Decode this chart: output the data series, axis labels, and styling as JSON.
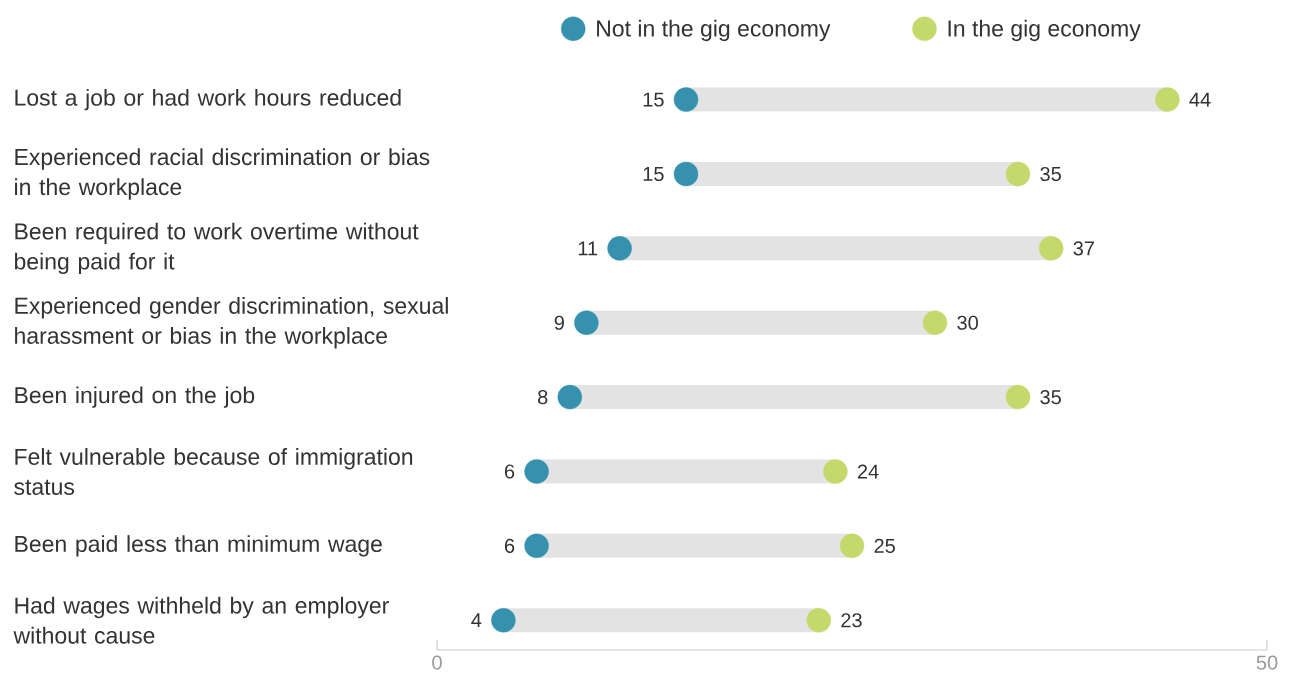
{
  "chart_data": {
    "type": "scatter",
    "orientation": "horizontal",
    "categories": [
      "Lost a job or had work hours reduced",
      "Experienced racial discrimination or bias in the workplace",
      "Been required to work overtime without being paid for it",
      "Experienced gender discrimination, sexual harassment or bias in the workplace",
      "Been injured on the job",
      "Felt vulnerable because of immigration status",
      "Been paid less than minimum wage",
      "Had wages withheld by an employer without cause"
    ],
    "series": [
      {
        "name": "Not in the gig economy",
        "color": "#3591ae",
        "values": [
          15,
          15,
          11,
          9,
          8,
          6,
          6,
          4
        ]
      },
      {
        "name": "In the gig economy",
        "color": "#c4d86b",
        "values": [
          44,
          35,
          37,
          30,
          35,
          24,
          25,
          23
        ]
      }
    ],
    "xlim": [
      0,
      50
    ],
    "xticks": [
      0,
      50
    ],
    "data_labels": true,
    "legend": "top",
    "grid": false
  }
}
